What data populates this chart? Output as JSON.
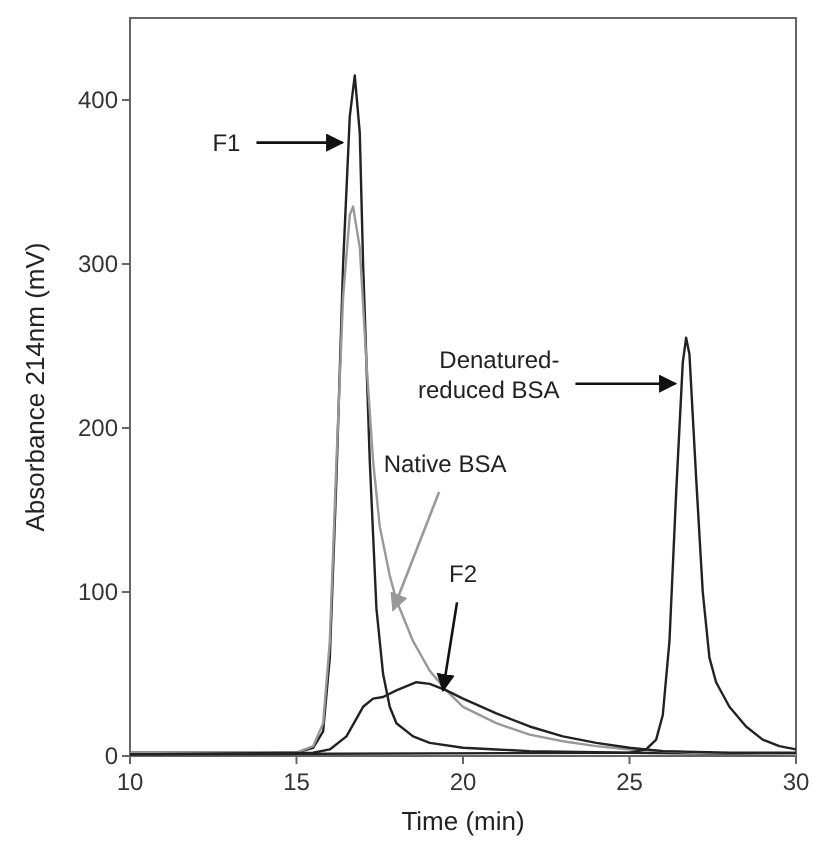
{
  "chart_data": {
    "type": "line",
    "xlabel": "Time (min)",
    "ylabel": "Absorbance 214nm (mV)",
    "xlim": [
      10,
      30
    ],
    "ylim": [
      0,
      450
    ],
    "xticks": [
      10,
      15,
      20,
      25,
      30
    ],
    "yticks": [
      0,
      100,
      200,
      300,
      400
    ],
    "grid": false,
    "marker": "none",
    "line_style": "solid",
    "series": [
      {
        "color": "#222222",
        "x": [
          10,
          15,
          15.5,
          15.8,
          16,
          16.2,
          16.4,
          16.6,
          16.75,
          16.9,
          17,
          17.2,
          17.4,
          17.6,
          17.8,
          18,
          18.5,
          19,
          20,
          21,
          22,
          25,
          30
        ],
        "values": [
          2,
          2,
          5,
          15,
          60,
          170,
          300,
          390,
          415,
          380,
          300,
          180,
          90,
          50,
          30,
          20,
          12,
          8,
          5,
          4,
          3,
          2,
          1
        ]
      },
      {
        "color": "#999999",
        "x": [
          10,
          15,
          15.5,
          15.8,
          16,
          16.2,
          16.4,
          16.6,
          16.7,
          16.9,
          17.1,
          17.3,
          17.5,
          17.8,
          18,
          18.5,
          19,
          19.5,
          20,
          21,
          22,
          23,
          24,
          25,
          27,
          30
        ],
        "values": [
          2,
          2,
          6,
          20,
          70,
          180,
          280,
          330,
          335,
          310,
          240,
          180,
          140,
          110,
          95,
          70,
          52,
          40,
          30,
          20,
          13,
          9,
          6,
          4,
          2,
          1
        ]
      },
      {
        "color": "#222222",
        "x": [
          10,
          15.5,
          16,
          16.5,
          17,
          17.3,
          17.6,
          18,
          18.6,
          19,
          19.5,
          20,
          21,
          22,
          23,
          24,
          25,
          26,
          28,
          30
        ],
        "values": [
          1,
          2,
          4,
          12,
          30,
          35,
          36,
          40,
          45,
          44,
          40,
          35,
          26,
          18,
          12,
          8,
          5,
          3,
          2,
          2
        ]
      },
      {
        "color": "#222222",
        "x": [
          10,
          25,
          25.5,
          25.8,
          26,
          26.2,
          26.4,
          26.6,
          26.7,
          26.8,
          27,
          27.2,
          27.4,
          27.6,
          28,
          28.5,
          29,
          29.5,
          30
        ],
        "values": [
          1,
          2,
          4,
          10,
          25,
          70,
          160,
          240,
          255,
          245,
          170,
          100,
          60,
          45,
          30,
          18,
          10,
          6,
          4
        ]
      }
    ],
    "annotations": [
      {
        "text": "F1",
        "x": 16.5,
        "y": 374
      },
      {
        "text": "Native BSA",
        "x": 17.9,
        "y": 89
      },
      {
        "text": "F2",
        "x": 19.4,
        "y": 40
      },
      {
        "text": "Denatured-\nreduced BSA",
        "x": 26.5,
        "y": 227
      }
    ]
  }
}
